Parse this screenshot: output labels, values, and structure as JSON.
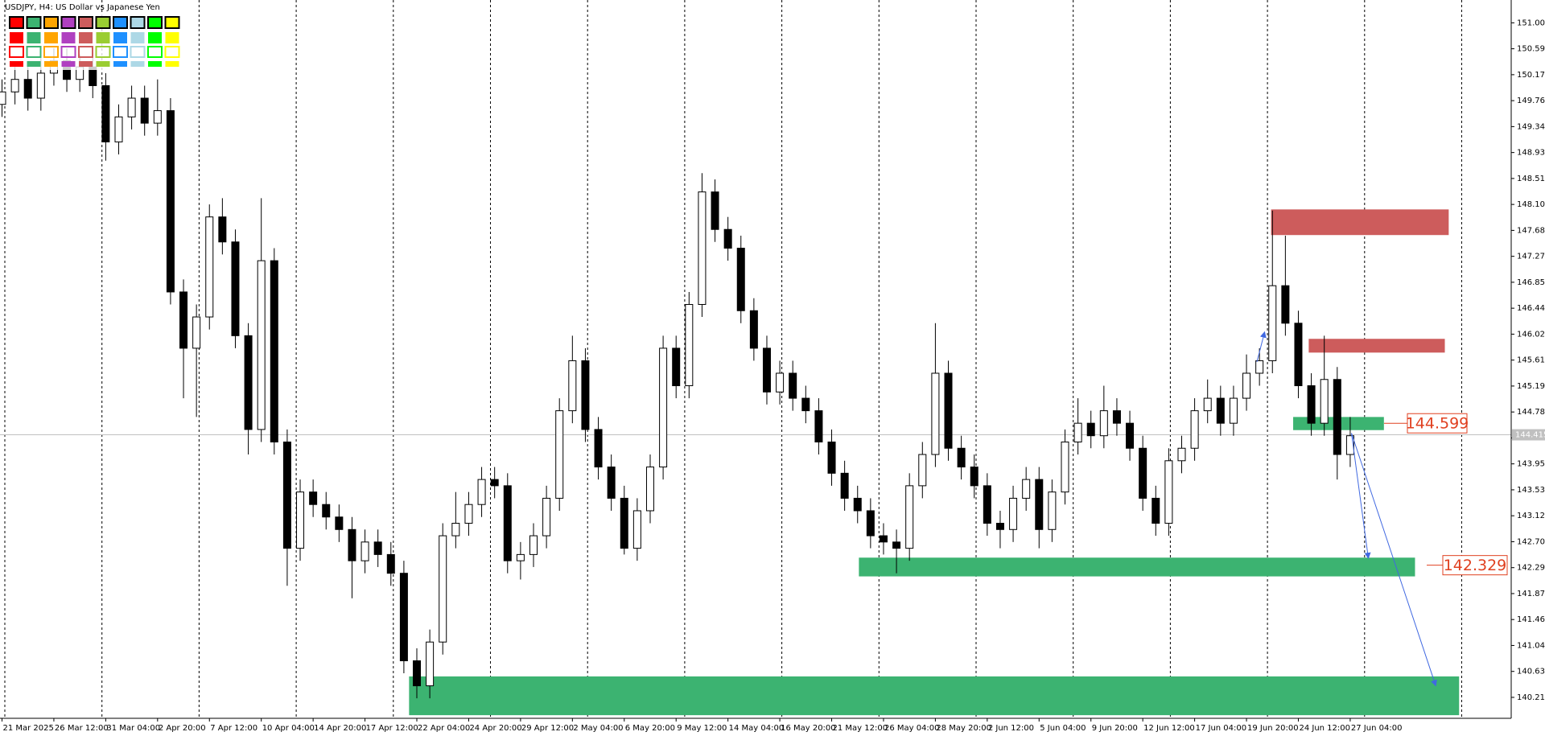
{
  "chart_data": {
    "type": "candlestick",
    "title": "USDJPY, H4:  US Dollar vs Japanese Yen",
    "categories": [
      "21 Mar 2025",
      null,
      null,
      null,
      "26 Mar 12:00",
      null,
      null,
      null,
      "31 Mar 04:00",
      null,
      null,
      null,
      "2 Apr 20:00",
      null,
      null,
      null,
      "7 Apr 12:00",
      null,
      null,
      null,
      "10 Apr 04:00",
      null,
      null,
      null,
      "14 Apr 20:00",
      null,
      null,
      null,
      "17 Apr 12:00",
      null,
      null,
      null,
      "22 Apr 04:00",
      null,
      null,
      null,
      "24 Apr 20:00",
      null,
      null,
      null,
      "29 Apr 12:00",
      null,
      null,
      null,
      "2 May 04:00",
      null,
      null,
      null,
      "6 May 20:00",
      null,
      null,
      null,
      "9 May 12:00",
      null,
      null,
      null,
      "14 May 04:00",
      null,
      null,
      null,
      "16 May 20:00",
      null,
      null,
      null,
      "21 May 12:00",
      null,
      null,
      null,
      "26 May 04:00",
      null,
      null,
      null,
      "28 May 20:00",
      null,
      null,
      null,
      "2 Jun 12:00",
      null,
      null,
      null,
      "5 Jun 04:00",
      null,
      null,
      null,
      "9 Jun 20:00",
      null,
      null,
      null,
      "12 Jun 12:00",
      null,
      null,
      null,
      "17 Jun 04:00",
      null,
      null,
      null,
      "19 Jun 20:00",
      null,
      null,
      null,
      "24 Jun 12:00",
      null,
      null,
      null,
      "27 Jun 04:00"
    ],
    "candles": [
      [
        149.7,
        150.1,
        149.5,
        149.9
      ],
      [
        149.9,
        150.3,
        149.7,
        150.1
      ],
      [
        150.1,
        150.3,
        149.6,
        149.8
      ],
      [
        149.8,
        150.6,
        149.6,
        150.2
      ],
      [
        150.2,
        150.6,
        150.0,
        150.4
      ],
      [
        150.4,
        150.6,
        149.9,
        150.1
      ],
      [
        150.1,
        150.5,
        149.9,
        150.3
      ],
      [
        150.3,
        150.5,
        149.8,
        150.0
      ],
      [
        150.0,
        150.2,
        148.8,
        149.1
      ],
      [
        149.1,
        149.7,
        148.9,
        149.5
      ],
      [
        149.5,
        150.0,
        149.3,
        149.8
      ],
      [
        149.8,
        150.0,
        149.2,
        149.4
      ],
      [
        149.4,
        150.1,
        149.2,
        149.6
      ],
      [
        149.6,
        149.8,
        146.5,
        146.7
      ],
      [
        146.7,
        146.9,
        145.0,
        145.8
      ],
      [
        145.8,
        146.5,
        144.7,
        146.3
      ],
      [
        146.3,
        148.1,
        146.1,
        147.9
      ],
      [
        147.9,
        148.2,
        147.3,
        147.5
      ],
      [
        147.5,
        147.7,
        145.8,
        146.0
      ],
      [
        146.0,
        146.2,
        144.1,
        144.5
      ],
      [
        144.5,
        148.2,
        144.3,
        147.2
      ],
      [
        147.2,
        147.4,
        144.1,
        144.3
      ],
      [
        144.3,
        144.5,
        142.0,
        142.6
      ],
      [
        142.6,
        143.7,
        142.4,
        143.5
      ],
      [
        143.5,
        143.7,
        143.1,
        143.3
      ],
      [
        143.3,
        143.5,
        142.9,
        143.1
      ],
      [
        143.1,
        143.3,
        142.7,
        142.9
      ],
      [
        142.9,
        143.1,
        141.8,
        142.4
      ],
      [
        142.4,
        142.9,
        142.2,
        142.7
      ],
      [
        142.7,
        142.9,
        142.3,
        142.5
      ],
      [
        142.5,
        142.7,
        142.0,
        142.2
      ],
      [
        142.2,
        142.4,
        140.6,
        140.8
      ],
      [
        140.8,
        141.0,
        140.2,
        140.4
      ],
      [
        140.4,
        141.3,
        140.2,
        141.1
      ],
      [
        141.1,
        143.0,
        140.9,
        142.8
      ],
      [
        142.8,
        143.5,
        142.6,
        143.0
      ],
      [
        143.0,
        143.5,
        142.8,
        143.3
      ],
      [
        143.3,
        143.9,
        143.1,
        143.7
      ],
      [
        143.7,
        143.9,
        143.4,
        143.6
      ],
      [
        143.6,
        143.8,
        142.2,
        142.4
      ],
      [
        142.4,
        142.7,
        142.1,
        142.5
      ],
      [
        142.5,
        143.0,
        142.3,
        142.8
      ],
      [
        142.8,
        143.6,
        142.6,
        143.4
      ],
      [
        143.4,
        145.0,
        143.2,
        144.8
      ],
      [
        144.8,
        146.0,
        144.6,
        145.6
      ],
      [
        145.6,
        145.8,
        144.3,
        144.5
      ],
      [
        144.5,
        144.7,
        143.7,
        143.9
      ],
      [
        143.9,
        144.1,
        143.2,
        143.4
      ],
      [
        143.4,
        143.6,
        142.5,
        142.6
      ],
      [
        142.6,
        143.4,
        142.4,
        143.2
      ],
      [
        143.2,
        144.1,
        143.0,
        143.9
      ],
      [
        143.9,
        146.0,
        143.7,
        145.8
      ],
      [
        145.8,
        146.0,
        145.0,
        145.2
      ],
      [
        145.2,
        146.7,
        145.0,
        146.5
      ],
      [
        146.5,
        148.6,
        146.3,
        148.3
      ],
      [
        148.3,
        148.5,
        147.5,
        147.7
      ],
      [
        147.7,
        147.9,
        147.2,
        147.4
      ],
      [
        147.4,
        147.6,
        146.2,
        146.4
      ],
      [
        146.4,
        146.6,
        145.6,
        145.8
      ],
      [
        145.8,
        146.0,
        144.9,
        145.1
      ],
      [
        145.1,
        145.6,
        144.9,
        145.4
      ],
      [
        145.4,
        145.6,
        144.8,
        145.0
      ],
      [
        145.0,
        145.2,
        144.6,
        144.8
      ],
      [
        144.8,
        145.0,
        144.1,
        144.3
      ],
      [
        144.3,
        144.5,
        143.6,
        143.8
      ],
      [
        143.8,
        144.0,
        143.2,
        143.4
      ],
      [
        143.4,
        143.6,
        143.0,
        143.2
      ],
      [
        143.2,
        143.4,
        142.6,
        142.8
      ],
      [
        142.8,
        143.0,
        142.5,
        142.7
      ],
      [
        142.7,
        142.9,
        142.2,
        142.6
      ],
      [
        142.6,
        143.8,
        142.4,
        143.6
      ],
      [
        143.6,
        144.3,
        143.4,
        144.1
      ],
      [
        144.1,
        146.2,
        143.9,
        145.4
      ],
      [
        145.4,
        145.6,
        144.0,
        144.2
      ],
      [
        144.2,
        144.4,
        143.7,
        143.9
      ],
      [
        143.9,
        144.1,
        143.4,
        143.6
      ],
      [
        143.6,
        143.8,
        142.8,
        143.0
      ],
      [
        143.0,
        143.2,
        142.6,
        142.9
      ],
      [
        142.9,
        143.6,
        142.7,
        143.4
      ],
      [
        143.4,
        143.9,
        143.2,
        143.7
      ],
      [
        143.7,
        143.9,
        142.6,
        142.9
      ],
      [
        142.9,
        143.7,
        142.7,
        143.5
      ],
      [
        143.5,
        144.5,
        143.3,
        144.3
      ],
      [
        144.3,
        145.0,
        144.1,
        144.6
      ],
      [
        144.6,
        144.8,
        144.2,
        144.4
      ],
      [
        144.4,
        145.2,
        144.2,
        144.8
      ],
      [
        144.8,
        145.0,
        144.4,
        144.6
      ],
      [
        144.6,
        144.8,
        144.0,
        144.2
      ],
      [
        144.2,
        144.4,
        143.2,
        143.4
      ],
      [
        143.4,
        143.6,
        142.8,
        143.0
      ],
      [
        143.0,
        144.2,
        142.8,
        144.0
      ],
      [
        144.0,
        144.4,
        143.8,
        144.2
      ],
      [
        144.2,
        145.0,
        144.0,
        144.8
      ],
      [
        144.8,
        145.3,
        144.6,
        145.0
      ],
      [
        145.0,
        145.2,
        144.4,
        144.6
      ],
      [
        144.6,
        145.2,
        144.4,
        145.0
      ],
      [
        145.0,
        145.7,
        144.8,
        145.4
      ],
      [
        145.4,
        145.8,
        145.2,
        145.6
      ],
      [
        145.6,
        148.0,
        145.4,
        146.8
      ],
      [
        146.8,
        147.6,
        146.0,
        146.2
      ],
      [
        146.2,
        146.4,
        145.0,
        145.2
      ],
      [
        145.2,
        145.4,
        144.4,
        144.6
      ],
      [
        144.6,
        146.0,
        144.4,
        145.3
      ],
      [
        145.3,
        145.5,
        143.7,
        144.1
      ],
      [
        144.1,
        144.7,
        143.9,
        144.4
      ]
    ],
    "xlim": [
      -0.155,
      116.42
    ],
    "ylim": [
      139.88,
      151.37
    ],
    "yticks": [
      {
        "value": 151.005,
        "label": "151.005"
      },
      {
        "value": 150.59,
        "label": "150.590"
      },
      {
        "value": 150.175,
        "label": "150.175"
      },
      {
        "value": 149.76,
        "label": "149.760"
      },
      {
        "value": 149.345,
        "label": "149.345"
      },
      {
        "value": 148.93,
        "label": "148.930"
      },
      {
        "value": 148.515,
        "label": "148.515"
      },
      {
        "value": 148.1,
        "label": "148.100"
      },
      {
        "value": 147.685,
        "label": "147.685"
      },
      {
        "value": 147.27,
        "label": "147.270"
      },
      {
        "value": 146.855,
        "label": "146.855"
      },
      {
        "value": 146.44,
        "label": "146.440"
      },
      {
        "value": 146.025,
        "label": "146.025"
      },
      {
        "value": 145.61,
        "label": "145.610"
      },
      {
        "value": 145.195,
        "label": "145.195"
      },
      {
        "value": 144.78,
        "label": "144.780"
      },
      {
        "value": 144.365,
        "label": "144.365"
      },
      {
        "value": 143.95,
        "label": "143.950"
      },
      {
        "value": 143.535,
        "label": "143.535"
      },
      {
        "value": 143.12,
        "label": "143.120"
      },
      {
        "value": 142.705,
        "label": "142.705"
      },
      {
        "value": 142.29,
        "label": "142.290"
      },
      {
        "value": 141.875,
        "label": "141.875"
      },
      {
        "value": 141.46,
        "label": "141.460"
      },
      {
        "value": 141.045,
        "label": "141.045"
      },
      {
        "value": 140.63,
        "label": "140.630"
      },
      {
        "value": 140.215,
        "label": "140.215"
      }
    ],
    "bid": 144.415,
    "zones": [
      {
        "color": "#cd5c5c",
        "ylim": [
          147.61,
          148.02
        ],
        "x": [
          97.9,
          111.6
        ]
      },
      {
        "color": "#cd5c5c",
        "ylim": [
          145.73,
          145.95
        ],
        "x": [
          100.8,
          111.3
        ]
      },
      {
        "color": "#3cb371",
        "ylim": [
          144.49,
          144.7
        ],
        "x": [
          99.6,
          106.6
        ]
      },
      {
        "color": "#3cb371",
        "ylim": [
          142.15,
          142.45
        ],
        "x": [
          66.1,
          109.0
        ]
      },
      {
        "color": "#3cb371",
        "ylim": [
          139.93,
          140.55
        ],
        "x": [
          31.4,
          112.4
        ]
      }
    ],
    "price_labels": [
      144.599,
      142.329
    ],
    "arrows": [
      {
        "from": [
          96.8,
          145.58
        ],
        "to": [
          97.4,
          146.06
        ]
      },
      {
        "from": [
          104.1,
          144.44
        ],
        "to": [
          105.4,
          142.44
        ]
      },
      {
        "from": [
          104.1,
          144.44
        ],
        "to": [
          110.6,
          140.4
        ]
      }
    ],
    "arrow_color": "#4169e1",
    "swatches": [
      "#ff0000",
      "#3cb371",
      "#ffa500",
      "#b040c0",
      "#cd5c5c",
      "#9acd32",
      "#1e90ff",
      "#add8e6",
      "#00ff00",
      "#ffff00"
    ]
  }
}
